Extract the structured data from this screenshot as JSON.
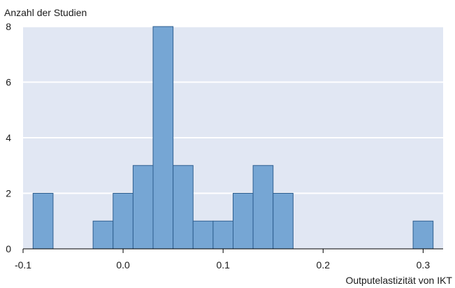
{
  "chart_data": {
    "type": "bar",
    "ylabel": "Anzahl der Studien",
    "xlabel": "Outputelastizität von IKT",
    "xlim": [
      -0.1,
      0.32
    ],
    "ylim": [
      0,
      8
    ],
    "x_ticks": [
      {
        "value": -0.1,
        "label": "-0.1"
      },
      {
        "value": 0.0,
        "label": "0.0"
      },
      {
        "value": 0.1,
        "label": "0.1"
      },
      {
        "value": 0.2,
        "label": "0.2"
      },
      {
        "value": 0.3,
        "label": "0.3"
      }
    ],
    "y_ticks": [
      {
        "value": 0,
        "label": "0"
      },
      {
        "value": 2,
        "label": "2"
      },
      {
        "value": 4,
        "label": "4"
      },
      {
        "value": 6,
        "label": "6"
      },
      {
        "value": 8,
        "label": "8"
      }
    ],
    "bin_width": 0.02,
    "bins": [
      {
        "x0": -0.09,
        "value": 2
      },
      {
        "x0": -0.07,
        "value": 0
      },
      {
        "x0": -0.05,
        "value": 0
      },
      {
        "x0": -0.03,
        "value": 1
      },
      {
        "x0": -0.01,
        "value": 2
      },
      {
        "x0": 0.01,
        "value": 3
      },
      {
        "x0": 0.03,
        "value": 8
      },
      {
        "x0": 0.05,
        "value": 3
      },
      {
        "x0": 0.07,
        "value": 1
      },
      {
        "x0": 0.09,
        "value": 1
      },
      {
        "x0": 0.11,
        "value": 2
      },
      {
        "x0": 0.13,
        "value": 3
      },
      {
        "x0": 0.15,
        "value": 2
      },
      {
        "x0": 0.17,
        "value": 0
      },
      {
        "x0": 0.19,
        "value": 0
      },
      {
        "x0": 0.21,
        "value": 0
      },
      {
        "x0": 0.23,
        "value": 0
      },
      {
        "x0": 0.25,
        "value": 0
      },
      {
        "x0": 0.27,
        "value": 0
      },
      {
        "x0": 0.29,
        "value": 1
      }
    ],
    "grid": true,
    "colors": {
      "plot_background": "#e1e7f3",
      "bar_fill": "#76a6d4",
      "bar_stroke": "#2f5f8f",
      "gridline": "#ffffff",
      "axis": "#000000"
    }
  }
}
